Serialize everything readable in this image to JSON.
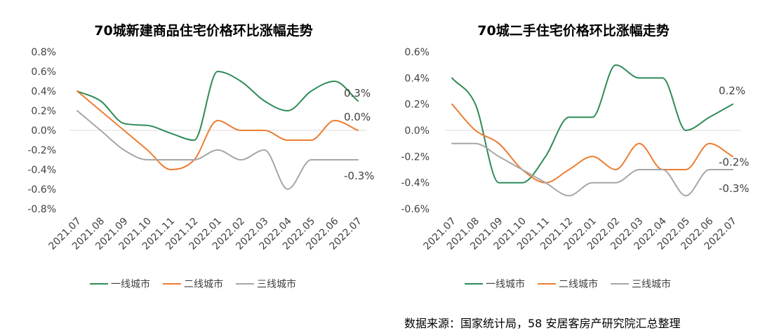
{
  "colors": {
    "tier1": "#2e8b57",
    "tier2": "#ed7d31",
    "tier3": "#a6a6a6",
    "axis": "#d9d9d9"
  },
  "chart_data": [
    {
      "type": "line",
      "title": "70城新建商品住宅价格环比涨幅走势",
      "categories": [
        "2021.07",
        "2021.08",
        "2021.09",
        "2021.10",
        "2021.11",
        "2021.12",
        "2022.01",
        "2022.02",
        "2022.03",
        "2022.04",
        "2022.05",
        "2022.06",
        "2022.07"
      ],
      "y_ticks": [
        0.8,
        0.6,
        0.4,
        0.2,
        0.0,
        -0.2,
        -0.4,
        -0.6,
        -0.8
      ],
      "y_tick_labels": [
        "0.8%",
        "0.6%",
        "0.4%",
        "0.2%",
        "0.0%",
        "-0.2%",
        "-0.4%",
        "-0.6%",
        "-0.8%"
      ],
      "ylim": [
        -0.8,
        0.8
      ],
      "series": [
        {
          "name": "一线城市",
          "key": "tier1",
          "values": [
            0.4,
            0.3,
            0.07,
            0.05,
            -0.03,
            -0.1,
            0.6,
            0.5,
            0.3,
            0.2,
            0.4,
            0.5,
            0.3
          ]
        },
        {
          "name": "二线城市",
          "key": "tier2",
          "values": [
            0.4,
            0.2,
            0.0,
            -0.2,
            -0.4,
            -0.3,
            0.1,
            0.0,
            0.0,
            -0.1,
            -0.1,
            0.1,
            0.0
          ]
        },
        {
          "name": "三线城市",
          "key": "tier3",
          "values": [
            0.2,
            0.0,
            -0.2,
            -0.3,
            -0.3,
            -0.3,
            -0.2,
            -0.3,
            -0.2,
            -0.6,
            -0.3,
            -0.3,
            -0.3
          ]
        }
      ],
      "end_labels": [
        "0.3%",
        "0.0%",
        "-0.3%"
      ],
      "legend": "bottom"
    },
    {
      "type": "line",
      "title": "70城二手住宅价格环比涨幅走势",
      "categories": [
        "2021.07",
        "2021.08",
        "2021.09",
        "2021.10",
        "2021.11",
        "2021.12",
        "2022.01",
        "2022.02",
        "2022.03",
        "2022.04",
        "2022.05",
        "2022.06",
        "2022.07"
      ],
      "y_ticks": [
        0.6,
        0.4,
        0.2,
        0.0,
        -0.2,
        -0.4,
        -0.6
      ],
      "y_tick_labels": [
        "0.6%",
        "0.4%",
        "0.2%",
        "0.0%",
        "-0.2%",
        "-0.4%",
        "-0.6%"
      ],
      "ylim": [
        -0.6,
        0.6
      ],
      "series": [
        {
          "name": "一线城市",
          "key": "tier1",
          "values": [
            0.4,
            0.2,
            -0.4,
            -0.4,
            -0.2,
            0.1,
            0.1,
            0.5,
            0.4,
            0.4,
            0.0,
            0.1,
            0.2
          ]
        },
        {
          "name": "二线城市",
          "key": "tier2",
          "values": [
            0.2,
            0.0,
            -0.1,
            -0.3,
            -0.4,
            -0.3,
            -0.2,
            -0.3,
            -0.1,
            -0.3,
            -0.3,
            -0.1,
            -0.2
          ]
        },
        {
          "name": "三线城市",
          "key": "tier3",
          "values": [
            -0.1,
            -0.1,
            -0.2,
            -0.3,
            -0.4,
            -0.5,
            -0.4,
            -0.4,
            -0.3,
            -0.3,
            -0.5,
            -0.3,
            -0.3
          ]
        }
      ],
      "end_labels": [
        "0.2%",
        "-0.2%",
        "-0.3%"
      ],
      "legend": "bottom"
    }
  ],
  "source_note": "数据来源：国家统计局，58 安居客房产研究院汇总整理"
}
